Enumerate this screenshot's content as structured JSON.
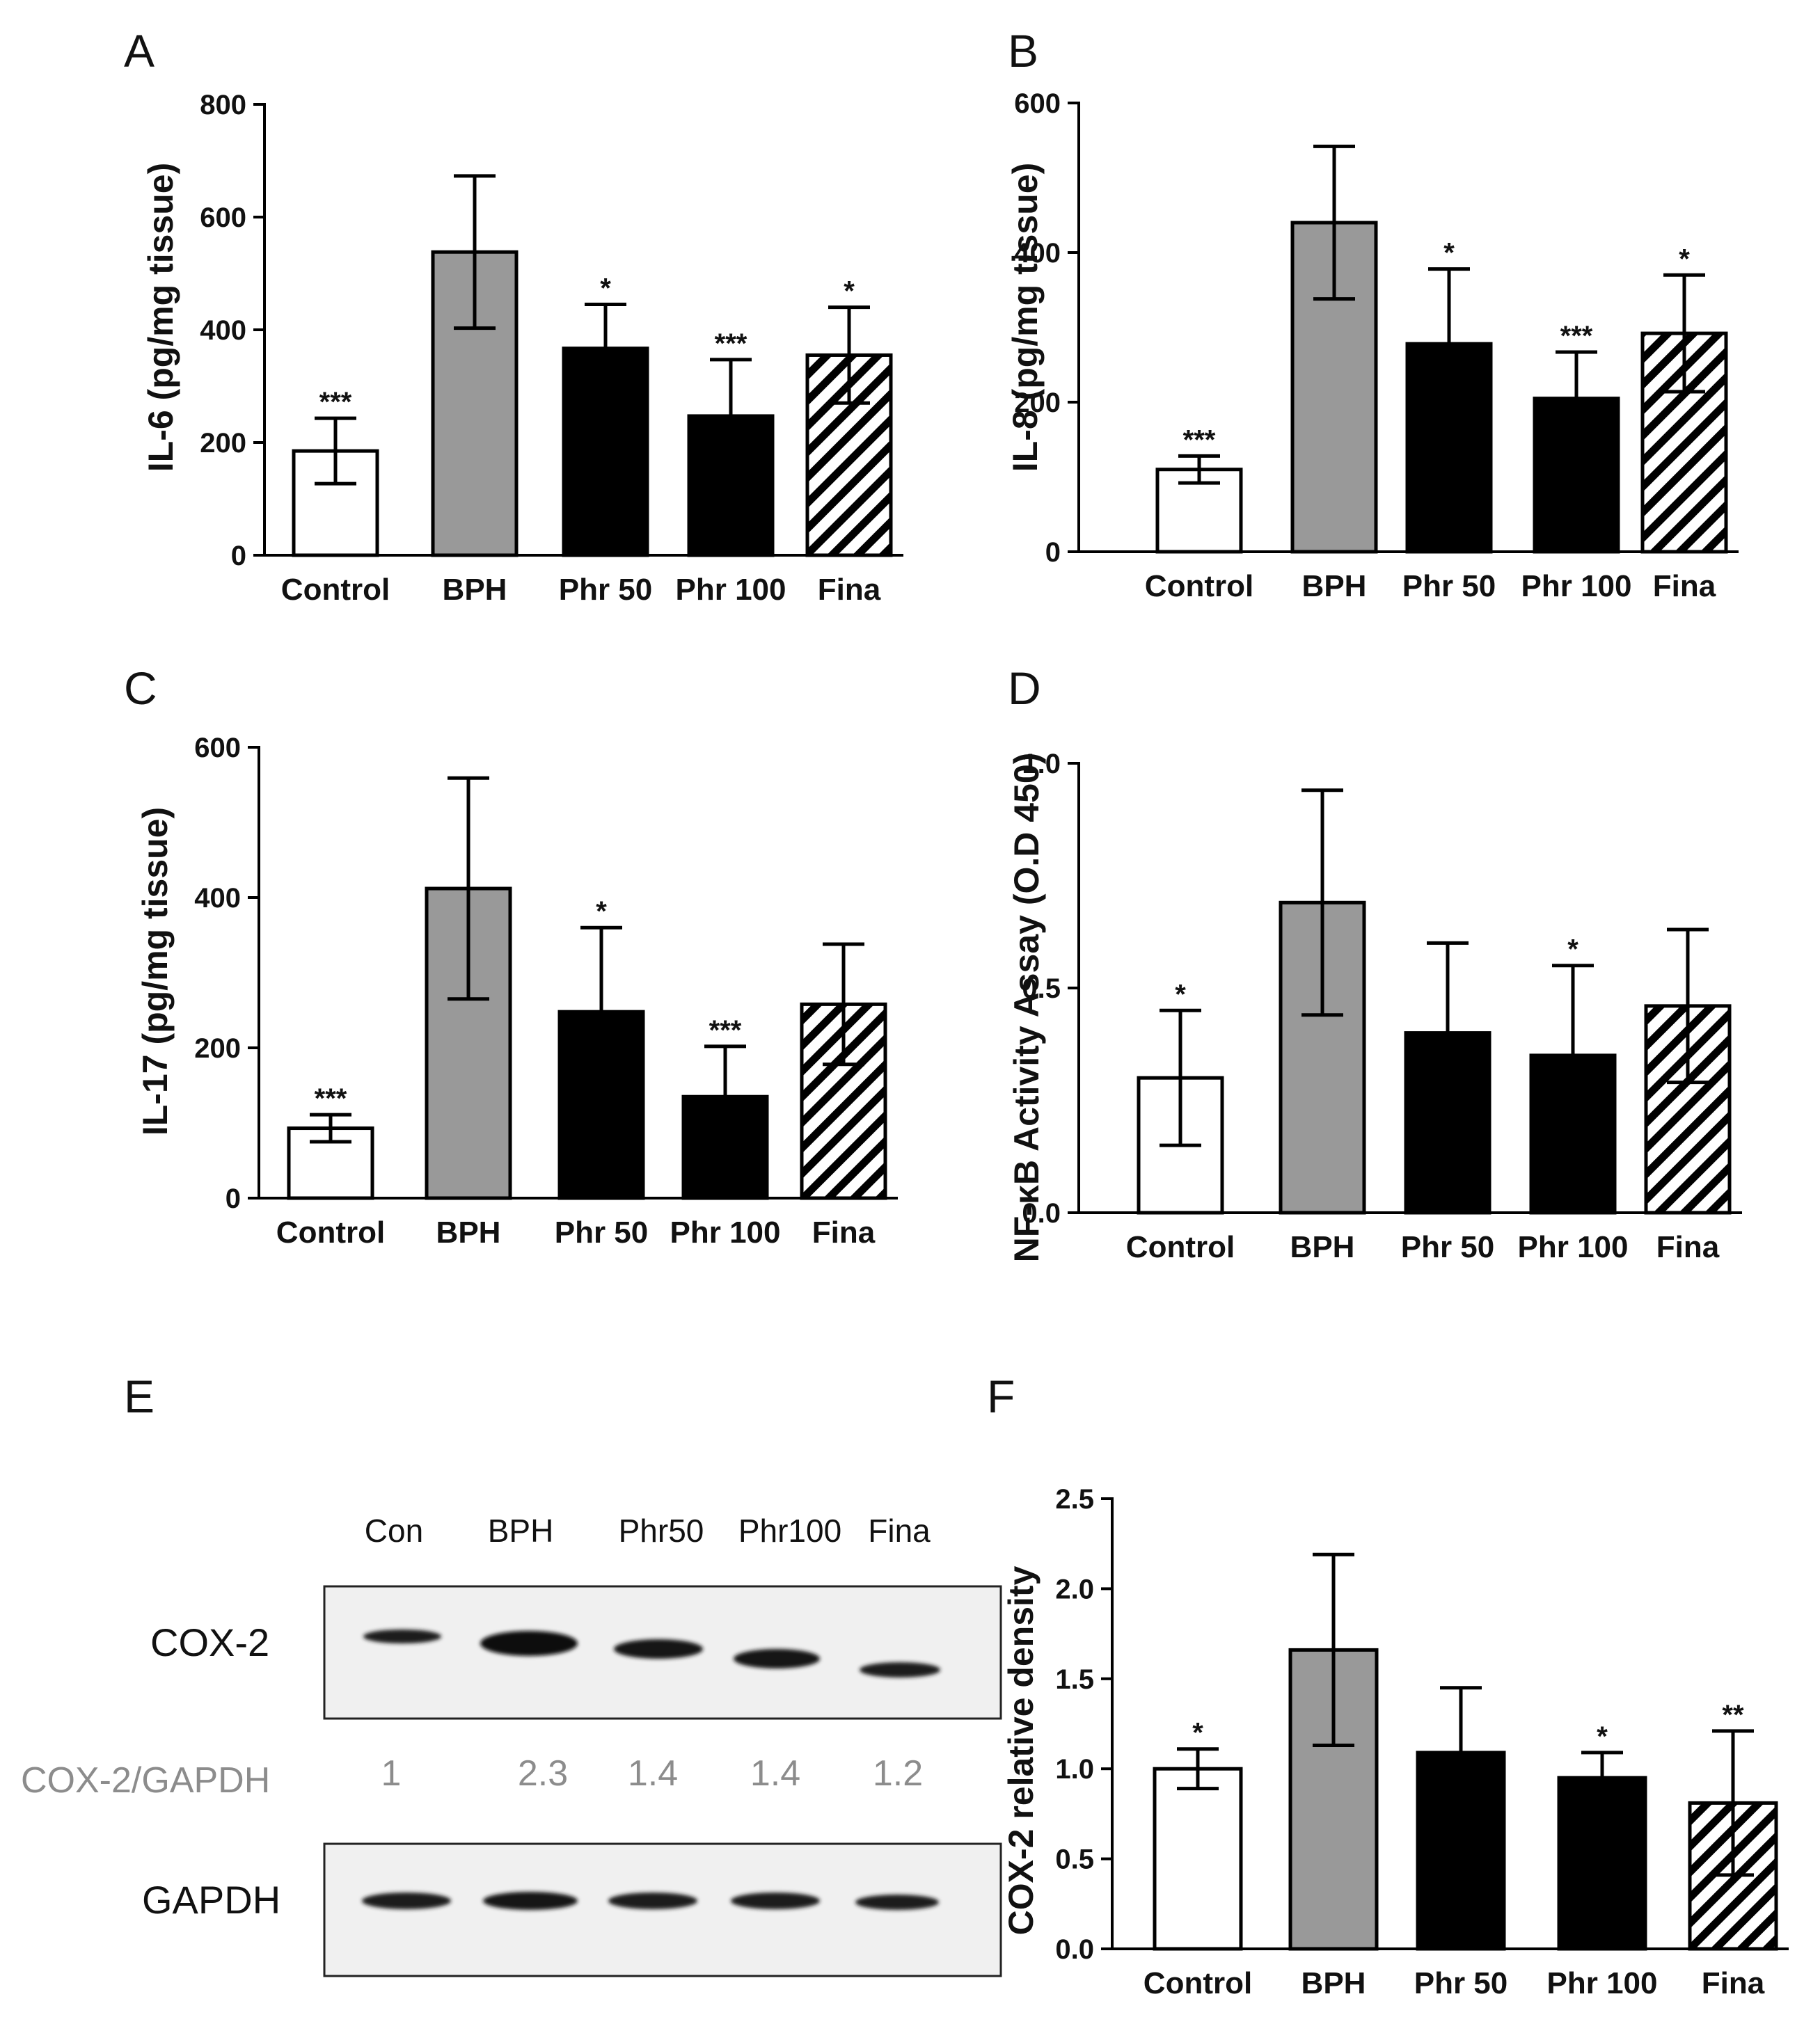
{
  "colors": {
    "control_fill": "#ffffff",
    "bph_fill": "#999999",
    "treatment_fill": "#000000",
    "fina_pattern": "hatch",
    "ratio_text": "#8c8c8c"
  },
  "chart_data": [
    {
      "id": "A",
      "panel_label": "A",
      "type": "bar",
      "ylabel": "IL-6 (pg/mg tissue)",
      "ylim": [
        0,
        800
      ],
      "yticks": [
        "0",
        "200",
        "400",
        "600",
        "800"
      ],
      "categories": [
        "Control",
        "BPH",
        "Phr 50",
        "Phr 100",
        "Fina"
      ],
      "values": [
        185,
        538,
        367,
        247,
        355
      ],
      "errors": [
        58,
        135,
        78,
        100,
        85
      ],
      "significance": [
        "***",
        "",
        "*",
        "***",
        "*"
      ]
    },
    {
      "id": "B",
      "panel_label": "B",
      "type": "bar",
      "ylabel": "IL-8 (pg/mg tissue)",
      "ylim": [
        0,
        600
      ],
      "yticks": [
        "0",
        "200",
        "400",
        "600"
      ],
      "categories": [
        "Control",
        "BPH",
        "Phr 50",
        "Phr 100",
        "Fina"
      ],
      "values": [
        110,
        440,
        278,
        205,
        292
      ],
      "errors": [
        18,
        102,
        100,
        62,
        78
      ],
      "significance": [
        "***",
        "",
        "*",
        "***",
        "*"
      ]
    },
    {
      "id": "C",
      "panel_label": "C",
      "type": "bar",
      "ylabel": "IL-17 (pg/mg tissue)",
      "ylim": [
        0,
        600
      ],
      "yticks": [
        "0",
        "200",
        "400",
        "600"
      ],
      "categories": [
        "Control",
        "BPH",
        "Phr 50",
        "Phr 100",
        "Fina"
      ],
      "values": [
        93,
        412,
        248,
        135,
        258
      ],
      "errors": [
        18,
        147,
        112,
        67,
        80
      ],
      "significance": [
        "***",
        "",
        "*",
        "***",
        ""
      ]
    },
    {
      "id": "D",
      "panel_label": "D",
      "type": "bar",
      "ylabel": "NF-κB Activity Assay (O.D 450)",
      "ylim": [
        0,
        1.0
      ],
      "yticks": [
        "0.0",
        "0.5",
        "1.0"
      ],
      "categories": [
        "Control",
        "BPH",
        "Phr 50",
        "Phr 100",
        "Fina"
      ],
      "values": [
        0.3,
        0.69,
        0.4,
        0.35,
        0.46
      ],
      "errors": [
        0.15,
        0.25,
        0.2,
        0.2,
        0.17
      ],
      "significance": [
        "*",
        "",
        "",
        "*",
        ""
      ]
    },
    {
      "id": "F",
      "panel_label": "F",
      "type": "bar",
      "ylabel": "COX-2 relative density",
      "ylim": [
        0,
        2.5
      ],
      "yticks": [
        "0.0",
        "0.5",
        "1.0",
        "1.5",
        "2.0",
        "2.5"
      ],
      "categories": [
        "Control",
        "BPH",
        "Phr 50",
        "Phr 100",
        "Fina"
      ],
      "values": [
        1.0,
        1.66,
        1.09,
        0.95,
        0.81
      ],
      "errors": [
        0.11,
        0.53,
        0.36,
        0.14,
        0.4
      ],
      "significance": [
        "*",
        "",
        "",
        "*",
        "**"
      ]
    }
  ],
  "blot": {
    "panel_label": "E",
    "lanes": [
      "Con",
      "BPH",
      "Phr50",
      "Phr100",
      "Fina"
    ],
    "proteins": [
      "COX-2",
      "GAPDH"
    ],
    "ratio_label": "COX-2/GAPDH",
    "ratios": [
      "1",
      "2.3",
      "1.4",
      "1.4",
      "1.2"
    ]
  }
}
